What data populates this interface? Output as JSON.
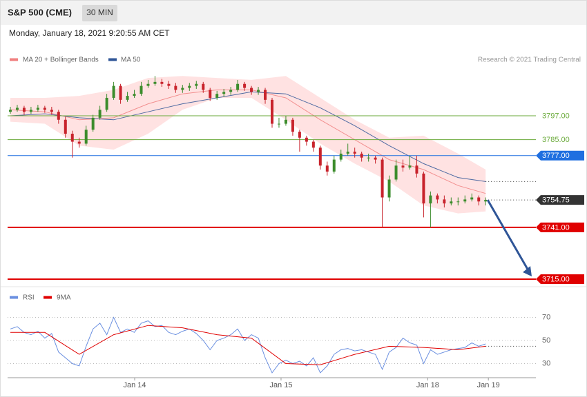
{
  "header": {
    "title": "S&P 500 (CME)",
    "interval": "30 MIN",
    "timestamp": "Monday, January 18, 2021 9:20:55 AM CET",
    "source": "Research © 2021 Trading Central"
  },
  "chart_data": [
    {
      "type": "candlestick",
      "ylim": [
        3713,
        3821
      ],
      "up_color": "#3c8c2c",
      "down_color": "#c8232c",
      "candles": [
        [
          3799,
          3801.5,
          3798,
          3800
        ],
        [
          3800,
          3802.5,
          3799,
          3801
        ],
        [
          3801,
          3802,
          3797.5,
          3799
        ],
        [
          3799,
          3801.5,
          3798,
          3800
        ],
        [
          3800,
          3802.5,
          3799,
          3801
        ],
        [
          3801,
          3802,
          3798.5,
          3800
        ],
        [
          3800,
          3801.5,
          3797.5,
          3799
        ],
        [
          3799,
          3800,
          3793,
          3795
        ],
        [
          3795,
          3796.5,
          3786,
          3788
        ],
        [
          3788,
          3789.5,
          3776,
          3784
        ],
        [
          3784,
          3786,
          3781,
          3783
        ],
        [
          3783,
          3792,
          3782,
          3790
        ],
        [
          3790,
          3797.5,
          3789,
          3796
        ],
        [
          3796,
          3802,
          3795,
          3800
        ],
        [
          3800,
          3808,
          3799,
          3806
        ],
        [
          3806,
          3814,
          3805,
          3812
        ],
        [
          3812,
          3813,
          3803,
          3805
        ],
        [
          3805,
          3809,
          3804,
          3807
        ],
        [
          3807,
          3810,
          3806,
          3808
        ],
        [
          3808,
          3814,
          3807,
          3812
        ],
        [
          3812,
          3815,
          3811,
          3813
        ],
        [
          3813,
          3817,
          3812,
          3814
        ],
        [
          3814,
          3815.5,
          3811.5,
          3813
        ],
        [
          3813,
          3814.5,
          3810.5,
          3812
        ],
        [
          3812,
          3813.5,
          3808.5,
          3810
        ],
        [
          3810,
          3812.5,
          3808.5,
          3811
        ],
        [
          3811,
          3813.5,
          3809.5,
          3812
        ],
        [
          3812,
          3814.5,
          3810.5,
          3813
        ],
        [
          3813,
          3814,
          3808.5,
          3810
        ],
        [
          3810,
          3811,
          3804.5,
          3806
        ],
        [
          3806,
          3809.5,
          3805,
          3808
        ],
        [
          3808,
          3810.5,
          3806.5,
          3809
        ],
        [
          3809,
          3811.5,
          3807.5,
          3810
        ],
        [
          3810,
          3815,
          3809,
          3813
        ],
        [
          3813,
          3814,
          3809.5,
          3811
        ],
        [
          3811,
          3812,
          3807.5,
          3809
        ],
        [
          3809,
          3811.5,
          3807.5,
          3810
        ],
        [
          3810,
          3811,
          3803,
          3805
        ],
        [
          3805,
          3806,
          3791,
          3793
        ],
        [
          3793,
          3796,
          3791,
          3793
        ],
        [
          3793,
          3797,
          3792,
          3795
        ],
        [
          3795,
          3796,
          3787,
          3789
        ],
        [
          3789,
          3790,
          3779,
          3786
        ],
        [
          3786,
          3787,
          3782,
          3784
        ],
        [
          3784,
          3785,
          3779,
          3781
        ],
        [
          3781,
          3782,
          3770,
          3772
        ],
        [
          3772,
          3774,
          3767,
          3769
        ],
        [
          3769,
          3777,
          3768,
          3775
        ],
        [
          3775,
          3780,
          3774,
          3778
        ],
        [
          3778,
          3783,
          3777,
          3779
        ],
        [
          3779,
          3781,
          3776,
          3778
        ],
        [
          3778,
          3779,
          3774,
          3776
        ],
        [
          3776,
          3778,
          3774,
          3776
        ],
        [
          3776,
          3777,
          3773,
          3775
        ],
        [
          3775,
          3776,
          3741,
          3756
        ],
        [
          3756,
          3767,
          3754,
          3765
        ],
        [
          3765,
          3775,
          3764,
          3772
        ],
        [
          3772,
          3775,
          3769,
          3771
        ],
        [
          3771,
          3777,
          3770,
          3772
        ],
        [
          3772,
          3777,
          3766,
          3768
        ],
        [
          3768,
          3769,
          3746,
          3753
        ],
        [
          3753,
          3759,
          3741,
          3757
        ],
        [
          3757,
          3758,
          3753,
          3755
        ],
        [
          3755,
          3757,
          3751,
          3753
        ],
        [
          3753,
          3756,
          3752,
          3754
        ],
        [
          3754,
          3756,
          3752,
          3754
        ],
        [
          3754,
          3757,
          3753,
          3755
        ],
        [
          3755,
          3758,
          3754,
          3756
        ],
        [
          3756,
          3757,
          3752,
          3754
        ],
        [
          3754,
          3756,
          3752,
          3754.75
        ]
      ],
      "series": [
        {
          "name": "MA 20 + Bollinger Bands",
          "color": "#f08080",
          "band_color": "#ffd6d6",
          "x": [
            0,
            5,
            10,
            15,
            20,
            25,
            30,
            35,
            40,
            45,
            50,
            55,
            60,
            65,
            69
          ],
          "values": [
            3800,
            3799,
            3795,
            3796,
            3803,
            3808,
            3810,
            3810,
            3806,
            3795,
            3785,
            3775,
            3770,
            3762,
            3758
          ],
          "upper": [
            3806,
            3806,
            3807,
            3810,
            3816,
            3817,
            3816,
            3815,
            3817,
            3806,
            3795,
            3786,
            3787,
            3778,
            3770
          ],
          "lower": [
            3794,
            3793,
            3782,
            3780,
            3788,
            3800,
            3806,
            3806,
            3795,
            3783,
            3773,
            3764,
            3752,
            3748,
            3749
          ]
        },
        {
          "name": "MA 50",
          "color": "#2f5597",
          "x": [
            0,
            5,
            10,
            15,
            20,
            25,
            30,
            35,
            40,
            45,
            50,
            55,
            60,
            65,
            69
          ],
          "values": [
            3797,
            3798,
            3796,
            3795,
            3799,
            3803,
            3806,
            3809,
            3808,
            3801,
            3792,
            3782,
            3773,
            3766,
            3764
          ]
        }
      ],
      "levels": [
        {
          "value": 3797,
          "label": "3797.00",
          "color": "#6aaa3a",
          "boxed": false,
          "width": 1
        },
        {
          "value": 3785,
          "label": "3785.00",
          "color": "#6aaa3a",
          "boxed": false,
          "width": 1
        },
        {
          "value": 3777,
          "label": "3777.00",
          "color": "#1f6fe0",
          "boxed": true,
          "width": 1
        },
        {
          "value": 3754.75,
          "label": "3754.75",
          "color": "#333333",
          "boxed": true,
          "width": 1,
          "dotted": true
        },
        {
          "value": 3741,
          "label": "3741.00",
          "color": "#e00000",
          "boxed": true,
          "width": 2
        },
        {
          "value": 3715,
          "label": "3715.00",
          "color": "#e00000",
          "boxed": true,
          "width": 2
        }
      ],
      "arrow_color": "#2f5597"
    },
    {
      "type": "line",
      "ylim": [
        18,
        82
      ],
      "yticks": [
        30,
        50,
        70
      ],
      "xlim": [
        -0.4,
        76.3
      ],
      "xticks": [
        {
          "value": 18.05,
          "label": "Jan 14"
        },
        {
          "value": 39.3,
          "label": "Jan 15"
        },
        {
          "value": 60.6,
          "label": "Jan 18"
        },
        {
          "value": 69.4,
          "label": "Jan 19"
        }
      ],
      "series": [
        {
          "name": "RSI",
          "color": "#6a8fe0",
          "values": [
            60,
            62,
            57,
            55,
            58,
            52,
            56,
            40,
            35,
            30,
            28,
            45,
            60,
            65,
            55,
            70,
            57,
            60,
            57,
            65,
            67,
            62,
            63,
            57,
            55,
            58,
            60,
            56,
            50,
            42,
            50,
            52,
            55,
            60,
            50,
            55,
            52,
            35,
            22,
            30,
            33,
            30,
            32,
            28,
            35,
            22,
            28,
            38,
            42,
            43,
            41,
            42,
            40,
            38,
            25,
            40,
            44,
            52,
            48,
            46,
            30,
            42,
            38,
            40,
            42,
            43,
            44,
            48,
            45,
            47
          ]
        },
        {
          "name": "9MA",
          "color": "#e00000",
          "x": [
            0,
            5,
            10,
            15,
            20,
            25,
            30,
            35,
            40,
            45,
            50,
            55,
            60,
            65,
            69
          ],
          "values": [
            57,
            57,
            38,
            55,
            63,
            61,
            55,
            52,
            30,
            29,
            38,
            45,
            44,
            42,
            45
          ]
        }
      ]
    }
  ]
}
